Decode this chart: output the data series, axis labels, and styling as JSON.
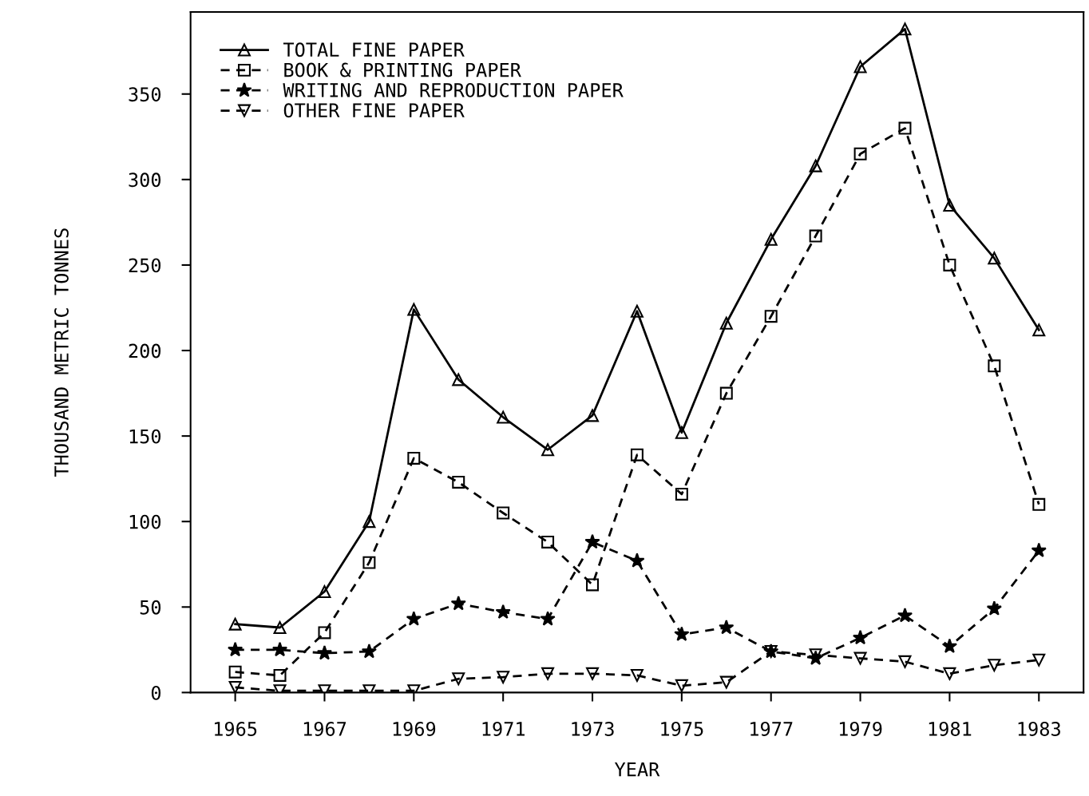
{
  "chart_data": {
    "type": "line",
    "xlabel": "YEAR",
    "ylabel": "THOUSAND METRIC TONNES",
    "x": [
      1965,
      1966,
      1967,
      1968,
      1969,
      1970,
      1971,
      1972,
      1973,
      1974,
      1975,
      1976,
      1977,
      1978,
      1979,
      1980,
      1981,
      1982,
      1983
    ],
    "xlim": [
      1964,
      1984
    ],
    "xticks": [
      1965,
      1967,
      1969,
      1971,
      1973,
      1975,
      1977,
      1979,
      1981,
      1983
    ],
    "ylim": [
      0,
      398
    ],
    "yticks": [
      0,
      50,
      100,
      150,
      200,
      250,
      300,
      350
    ],
    "grid": false,
    "legend": "top left",
    "series": [
      {
        "name": "TOTAL FINE PAPER",
        "color": "#000000",
        "marker": "triangle",
        "line_style": "solid",
        "values": [
          40,
          38,
          59,
          100,
          224,
          183,
          161,
          142,
          162,
          223,
          152,
          216,
          265,
          308,
          366,
          388,
          285,
          254,
          212
        ]
      },
      {
        "name": "BOOK & PRINTING PAPER",
        "color": "#000000",
        "marker": "square",
        "line_style": "dashed",
        "values": [
          12,
          10,
          35,
          76,
          137,
          123,
          105,
          88,
          63,
          139,
          116,
          175,
          220,
          267,
          315,
          330,
          250,
          191,
          110
        ]
      },
      {
        "name": "WRITING AND REPRODUCTION PAPER",
        "color": "#000000",
        "marker": "star",
        "line_style": "dashed",
        "values": [
          25,
          25,
          23,
          24,
          43,
          52,
          47,
          43,
          88,
          77,
          34,
          38,
          24,
          20,
          32,
          45,
          27,
          49,
          83
        ]
      },
      {
        "name": "OTHER FINE PAPER",
        "color": "#000000",
        "marker": "triangle_down",
        "line_style": "dashed",
        "values": [
          3,
          1,
          1,
          1,
          1,
          8,
          9,
          11,
          11,
          10,
          4,
          6,
          24,
          22,
          20,
          18,
          11,
          16,
          19
        ]
      }
    ]
  }
}
